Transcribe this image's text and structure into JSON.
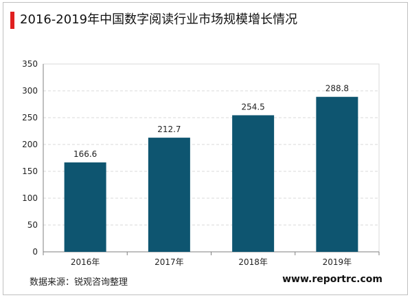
{
  "header": {
    "title": "2016-2019年中国数字阅读行业市场规模增长情况"
  },
  "footer": {
    "source": "数据来源：锐观咨询整理",
    "site": "www.reportrc.com"
  },
  "colors": {
    "bar": "#0e5570",
    "title_accent": "#e02020",
    "grid": "#d9d9d9",
    "axis": "#7f7f7f"
  },
  "chart_data": {
    "type": "bar",
    "title": "2016-2019年中国数字阅读行业市场规模增长情况",
    "xlabel": "",
    "ylabel": "",
    "categories": [
      "2016年",
      "2017年",
      "2018年",
      "2019年"
    ],
    "values": [
      166.6,
      212.7,
      254.5,
      288.8
    ],
    "ylim": [
      0,
      350
    ],
    "yticks": [
      0,
      50,
      100,
      150,
      200,
      250,
      300,
      350
    ],
    "grid": true,
    "legend": "none",
    "data_labels": true
  }
}
